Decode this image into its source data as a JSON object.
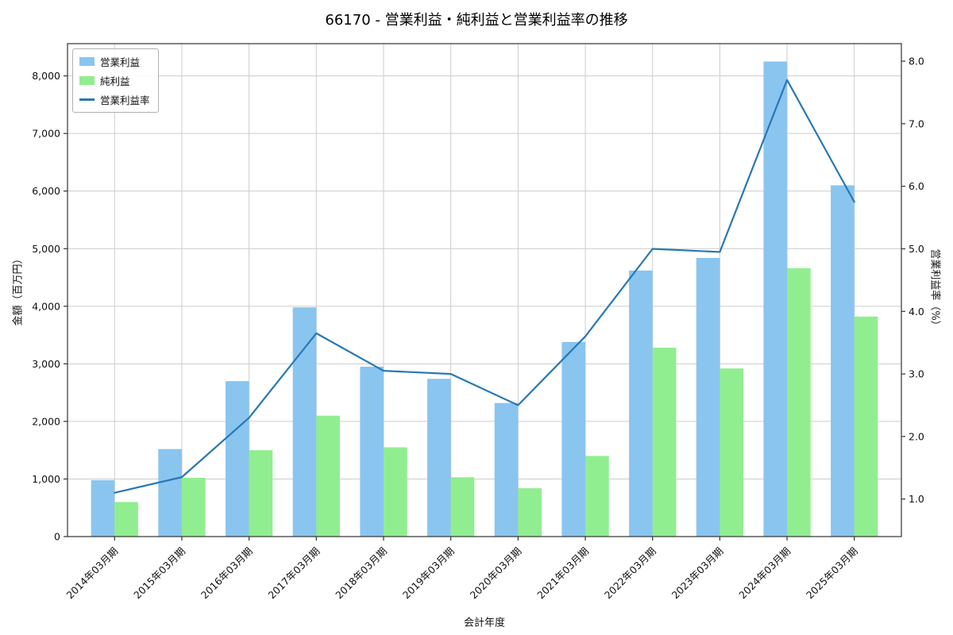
{
  "chart_data": {
    "type": "bar",
    "title": "66170 - 営業利益・純利益と営業利益率の推移",
    "xlabel": "会計年度",
    "ylabel_left": "金額（百万円）",
    "ylabel_right": "営業利益率（%）",
    "categories": [
      "2014年03月期",
      "2015年03月期",
      "2016年03月期",
      "2017年03月期",
      "2018年03月期",
      "2019年03月期",
      "2020年03月期",
      "2021年03月期",
      "2022年03月期",
      "2023年03月期",
      "2024年03月期",
      "2025年03月期"
    ],
    "series": [
      {
        "name": "営業利益",
        "type": "bar",
        "axis": "left",
        "color": "#8ac5f0",
        "values": [
          980,
          1520,
          2700,
          3980,
          2950,
          2740,
          2320,
          3380,
          4620,
          4840,
          8250,
          6100
        ]
      },
      {
        "name": "純利益",
        "type": "bar",
        "axis": "left",
        "color": "#90ee90",
        "values": [
          600,
          1020,
          1500,
          2100,
          1550,
          1030,
          840,
          1400,
          3280,
          2920,
          4660,
          3820
        ]
      },
      {
        "name": "営業利益率",
        "type": "line",
        "axis": "right",
        "color": "#2878b4",
        "values": [
          1.1,
          1.35,
          2.3,
          3.65,
          3.05,
          3.0,
          2.5,
          3.6,
          5.0,
          4.95,
          7.7,
          5.75
        ]
      }
    ],
    "ylim_left": [
      0,
      8560
    ],
    "ylim_right": [
      0.4,
      8.28
    ],
    "yticks_left": [
      0,
      1000,
      2000,
      3000,
      4000,
      5000,
      6000,
      7000,
      8000
    ],
    "yticks_right": [
      1.0,
      2.0,
      3.0,
      4.0,
      5.0,
      6.0,
      7.0,
      8.0
    ],
    "grid": true,
    "legend_position": "upper-left",
    "colors": {
      "grid": "#cccccc",
      "frame": "#333333",
      "background": "#ffffff"
    }
  }
}
